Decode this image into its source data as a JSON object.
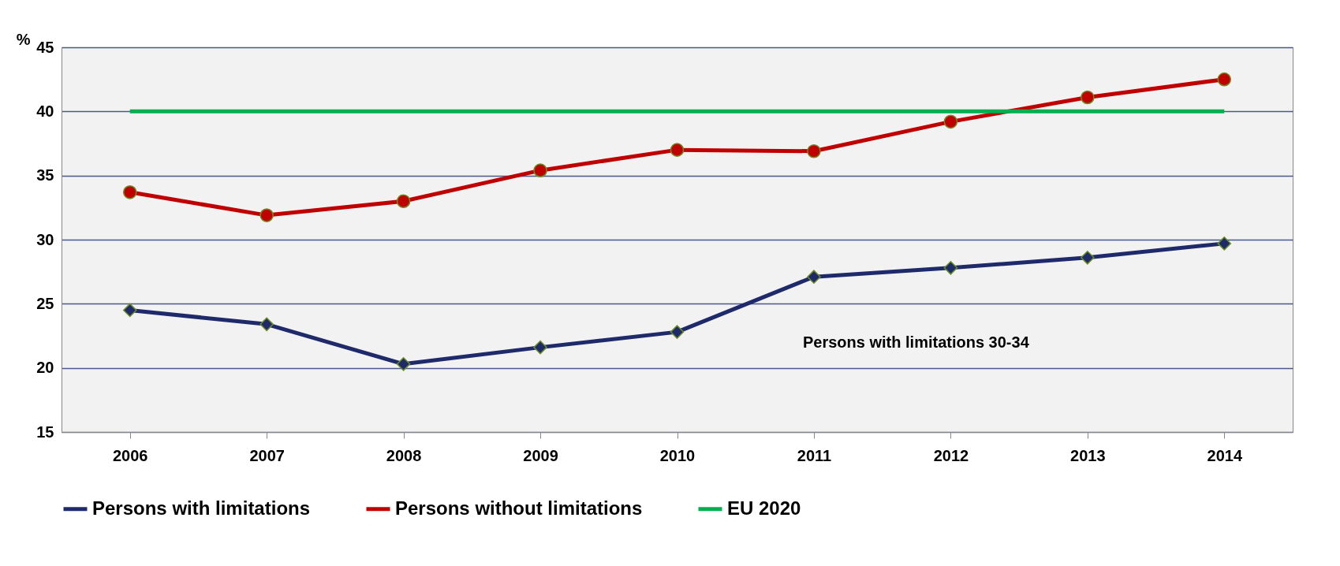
{
  "chart_data": {
    "type": "line",
    "ylabel": "%",
    "categories": [
      "2006",
      "2007",
      "2008",
      "2009",
      "2010",
      "2011",
      "2012",
      "2013",
      "2014"
    ],
    "series": [
      {
        "name": "Persons with limitations",
        "color": "#1f2a6b",
        "marker": "diamond",
        "values": [
          24.5,
          23.4,
          20.3,
          21.6,
          22.8,
          27.1,
          27.8,
          28.6,
          29.7
        ]
      },
      {
        "name": "Persons without limitations",
        "color": "#c00000",
        "marker": "circle",
        "values": [
          33.7,
          31.9,
          33.0,
          35.4,
          37.0,
          36.9,
          39.2,
          41.1,
          42.5
        ]
      },
      {
        "name": "EU 2020",
        "color": "#00b050",
        "marker": "none",
        "values": [
          40,
          40,
          40,
          40,
          40,
          40,
          40,
          40,
          40
        ]
      }
    ],
    "ylim": [
      15,
      45
    ],
    "yticks": [
      15,
      20,
      25,
      30,
      35,
      40,
      45
    ],
    "grid": "y",
    "legend": "bottom",
    "annotations": [
      "Persons with limitations 30-34"
    ]
  }
}
